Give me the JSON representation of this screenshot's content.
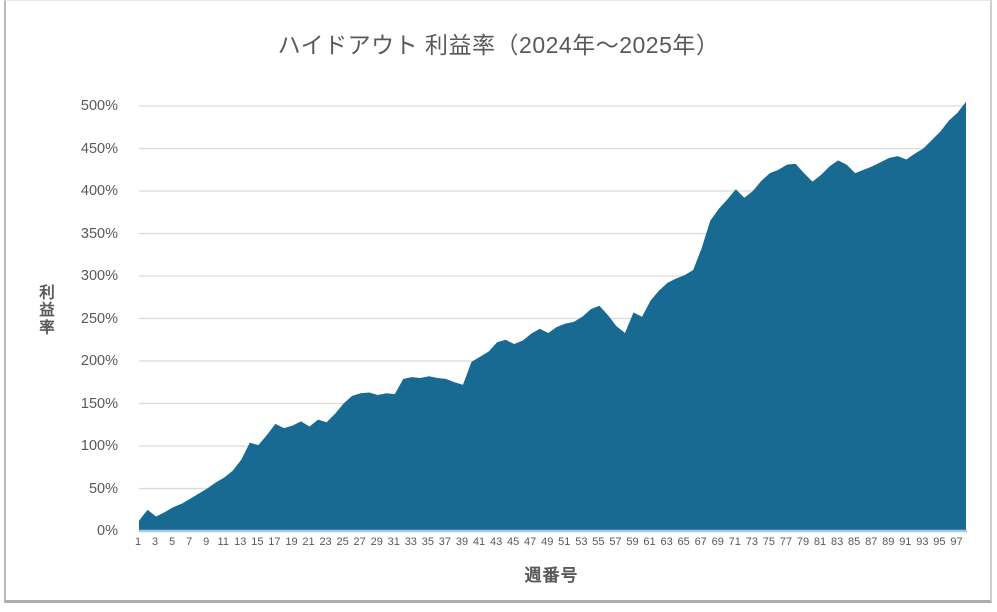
{
  "title": "ハイドアウト 利益率（2024年～2025年）",
  "chart_data": {
    "type": "area",
    "title": "ハイドアウト 利益率（2024年～2025年）",
    "xlabel": "週番号",
    "ylabel": "利益率",
    "x_unit": "week",
    "x_range": [
      1,
      98
    ],
    "ylim": [
      0,
      500
    ],
    "y_tick_step": 50,
    "grid": "horizontal",
    "legend": "none",
    "y_tick_labels": [
      "0%",
      "50%",
      "100%",
      "150%",
      "200%",
      "250%",
      "300%",
      "350%",
      "400%",
      "450%",
      "500%"
    ],
    "x_tick_labels": [
      1,
      3,
      5,
      7,
      9,
      11,
      13,
      15,
      17,
      19,
      21,
      23,
      25,
      27,
      29,
      31,
      33,
      35,
      37,
      39,
      41,
      43,
      45,
      47,
      49,
      51,
      53,
      55,
      57,
      59,
      61,
      63,
      65,
      67,
      69,
      71,
      73,
      75,
      77,
      79,
      81,
      83,
      85,
      87,
      89,
      91,
      93,
      95,
      97
    ],
    "series_name": "利益率",
    "values": [
      12,
      25,
      17,
      22,
      28,
      32,
      38,
      44,
      50,
      57,
      63,
      71,
      84,
      104,
      101,
      113,
      126,
      121,
      124,
      129,
      123,
      131,
      128,
      138,
      150,
      159,
      162,
      163,
      160,
      162,
      161,
      179,
      181,
      180,
      182,
      180,
      179,
      175,
      172,
      199,
      205,
      211,
      222,
      225,
      220,
      224,
      232,
      238,
      233,
      240,
      244,
      246,
      252,
      261,
      265,
      254,
      241,
      233,
      257,
      252,
      271,
      283,
      292,
      297,
      301,
      307,
      333,
      365,
      379,
      390,
      402,
      392,
      400,
      412,
      421,
      425,
      431,
      432,
      421,
      411,
      419,
      429,
      436,
      431,
      421,
      425,
      429,
      434,
      439,
      441,
      437,
      444,
      450,
      460,
      470,
      483,
      492,
      505
    ],
    "colors": {
      "area_fill": "#186a93",
      "baseline": "#a9cbde",
      "gridline": "#d9d9d9",
      "text": "#595959",
      "frame_border": "#ababab",
      "background": "#ffffff"
    }
  }
}
